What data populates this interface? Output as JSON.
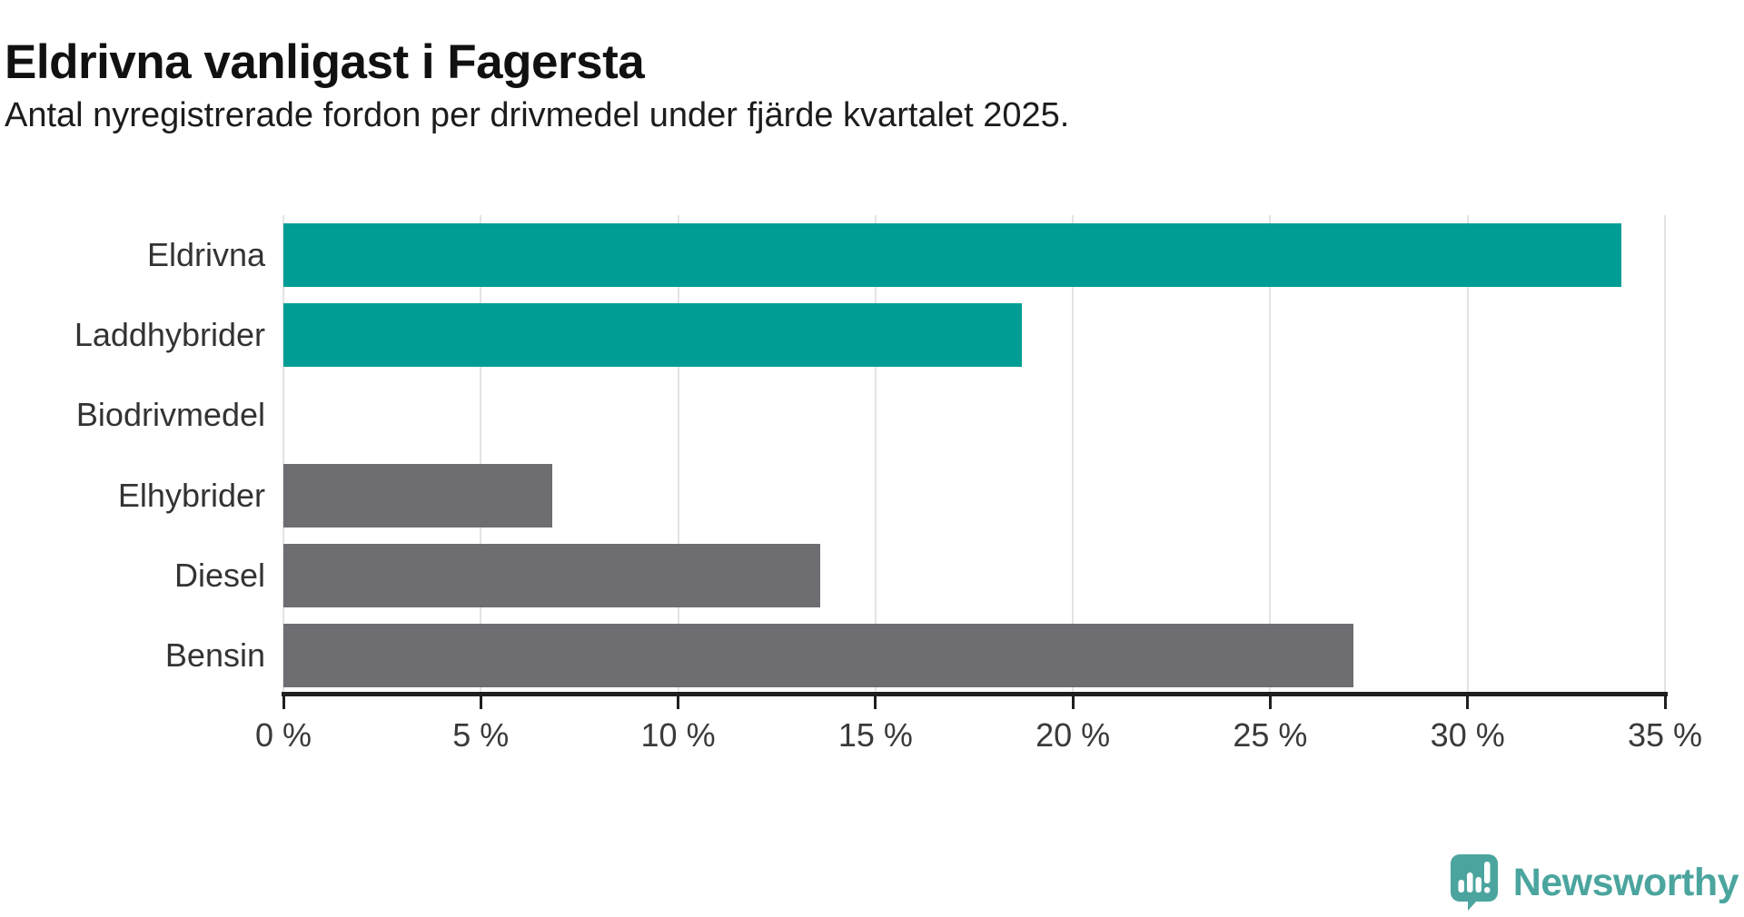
{
  "title": "Eldrivna vanligast i Fagersta",
  "subtitle": "Antal nyregistrerade fordon per drivmedel under fjärde kvartalet 2025.",
  "chart_data": {
    "type": "bar",
    "orientation": "horizontal",
    "title": "Eldrivna vanligast i Fagersta",
    "subtitle": "Antal nyregistrerade fordon per drivmedel under fjärde kvartalet 2025.",
    "categories": [
      "Eldrivna",
      "Laddhybrider",
      "Biodrivmedel",
      "Elhybrider",
      "Diesel",
      "Bensin"
    ],
    "values": [
      33.9,
      18.7,
      0,
      6.8,
      13.6,
      27.1
    ],
    "unit": "%",
    "bar_colors": [
      "#009d95",
      "#009d95",
      "#6d6d72",
      "#6d6d72",
      "#6d6d72",
      "#6d6d72"
    ],
    "xlim": [
      0,
      35
    ],
    "x_ticks": [
      "0 %",
      "5 %",
      "10 %",
      "15 %",
      "20 %",
      "25 %",
      "30 %",
      "35 %"
    ],
    "x_tick_values": [
      0,
      5,
      10,
      15,
      20,
      25,
      30,
      35
    ],
    "grid": true,
    "legend": "none"
  },
  "colors": {
    "teal": "#009d95",
    "gray": "#6d6d72",
    "gridline": "#e3e3e3",
    "axis": "#1f1f1f",
    "label_text": "#333333",
    "logo_teal": "#4ba59e"
  },
  "footer": {
    "brand": "Newsworthy",
    "logo_icon": "bar-chart-speech-bubble-icon"
  }
}
